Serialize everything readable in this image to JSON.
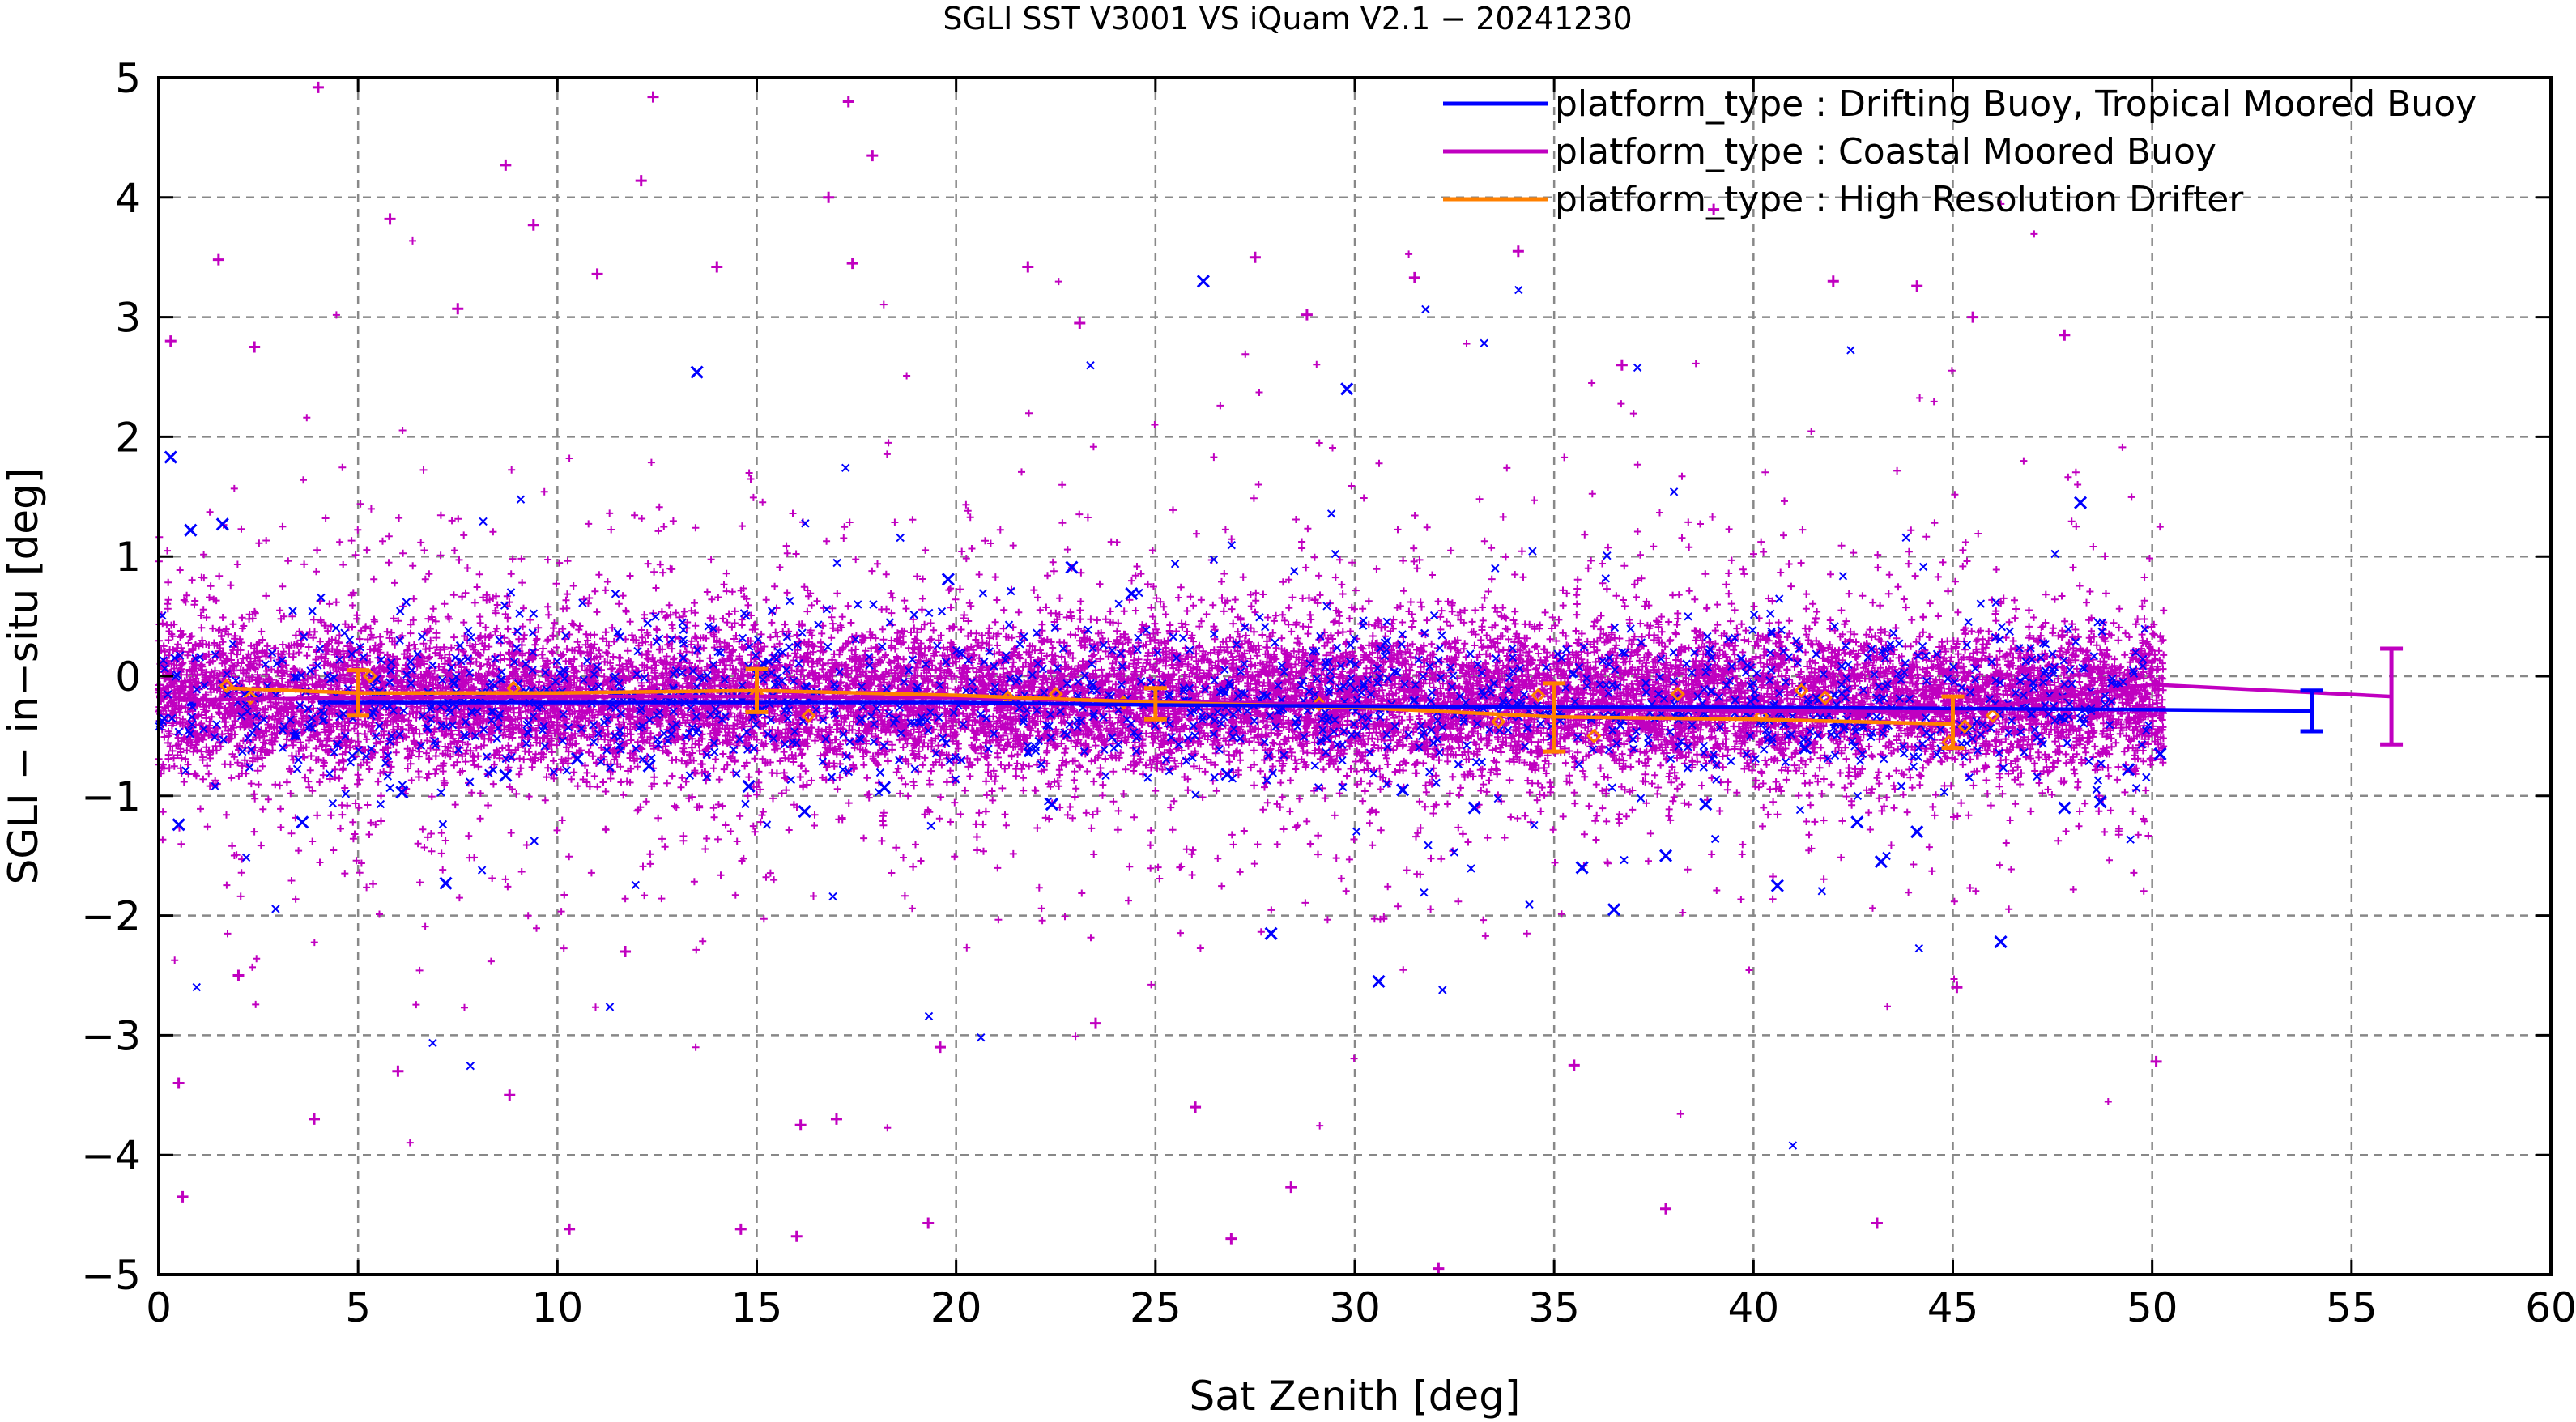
{
  "chart_data": {
    "type": "scatter",
    "title": "SGLI SST V3001 VS iQuam V2.1  − 20241230",
    "xlabel": "Sat Zenith [deg]",
    "ylabel": "SGLI − in−situ [deg]",
    "xlim": [
      0,
      60
    ],
    "ylim": [
      -5,
      5
    ],
    "xticks": [
      0,
      5,
      10,
      15,
      20,
      25,
      30,
      35,
      40,
      45,
      50,
      55,
      60
    ],
    "yticks": [
      -5,
      -4,
      -3,
      -2,
      -1,
      0,
      1,
      2,
      3,
      4,
      5
    ],
    "xtick_labels": [
      "0",
      "5",
      "10",
      "15",
      "20",
      "25",
      "30",
      "35",
      "40",
      "45",
      "50",
      "55",
      "60"
    ],
    "ytick_labels": [
      "−5",
      "−4",
      "−3",
      "−2",
      "−1",
      "0",
      "1",
      "2",
      "3",
      "4",
      "5"
    ],
    "grid": true,
    "legend_position": "top-right",
    "series": [
      {
        "name": "platform_type : Drifting Buoy, Tropical Moored Buoy",
        "color": "#0000ff",
        "marker": "x",
        "mean_line": {
          "x": [
            4,
            10,
            15,
            20,
            25,
            30,
            35,
            40,
            45,
            50,
            54
          ],
          "y": [
            -0.22,
            -0.22,
            -0.22,
            -0.22,
            -0.24,
            -0.25,
            -0.26,
            -0.26,
            -0.27,
            -0.28,
            -0.29
          ]
        },
        "error_bars": [
          {
            "x": 54,
            "low": -0.46,
            "high": -0.12
          }
        ],
        "sample_points": [
          {
            "x": 0.3,
            "y": 1.83
          },
          {
            "x": 0.5,
            "y": -1.24
          },
          {
            "x": 0.8,
            "y": 1.22
          },
          {
            "x": 1.6,
            "y": 1.27
          },
          {
            "x": 3.6,
            "y": -1.22
          },
          {
            "x": 6.1,
            "y": -0.97
          },
          {
            "x": 7.2,
            "y": -1.73
          },
          {
            "x": 8.7,
            "y": -0.83
          },
          {
            "x": 10.5,
            "y": -0.69
          },
          {
            "x": 13.5,
            "y": 2.54
          },
          {
            "x": 16.2,
            "y": -1.13
          },
          {
            "x": 18.2,
            "y": -0.93
          },
          {
            "x": 19.8,
            "y": 0.81
          },
          {
            "x": 22.4,
            "y": -1.07
          },
          {
            "x": 24.4,
            "y": 0.69
          },
          {
            "x": 26.2,
            "y": 3.3
          },
          {
            "x": 27.9,
            "y": -2.15
          },
          {
            "x": 29.8,
            "y": 2.4
          },
          {
            "x": 30.6,
            "y": -2.55
          },
          {
            "x": 31.2,
            "y": -0.95
          },
          {
            "x": 33.0,
            "y": -1.1
          },
          {
            "x": 35.7,
            "y": -1.6
          },
          {
            "x": 36.5,
            "y": -1.95
          },
          {
            "x": 37.8,
            "y": -1.5
          },
          {
            "x": 40.6,
            "y": -1.75
          },
          {
            "x": 41.3,
            "y": -0.6
          },
          {
            "x": 43.2,
            "y": -1.55
          },
          {
            "x": 44.1,
            "y": -1.3
          },
          {
            "x": 46.2,
            "y": -2.22
          },
          {
            "x": 47.8,
            "y": -1.1
          },
          {
            "x": 48.2,
            "y": 1.45
          },
          {
            "x": 49.4,
            "y": -0.78
          },
          {
            "x": 50.2,
            "y": -0.65
          },
          {
            "x": 48.7,
            "y": -1.05
          },
          {
            "x": 12.3,
            "y": -0.75
          },
          {
            "x": 22.9,
            "y": 0.91
          },
          {
            "x": 38.8,
            "y": -1.07
          },
          {
            "x": 42.6,
            "y": -1.22
          },
          {
            "x": 14.8,
            "y": -0.92
          },
          {
            "x": 26.8,
            "y": -0.82
          }
        ]
      },
      {
        "name": "platform_type : Coastal Moored Buoy",
        "color": "#c000c0",
        "marker": "+",
        "mean_line": {
          "x": [
            0.5,
            5,
            10,
            15,
            20,
            25,
            30,
            35,
            40,
            45,
            50,
            56
          ],
          "y": [
            -0.2,
            -0.18,
            -0.17,
            -0.17,
            -0.18,
            -0.21,
            -0.24,
            -0.27,
            -0.29,
            -0.3,
            -0.07,
            -0.17
          ]
        },
        "error_bars": [
          {
            "x": 56,
            "low": -0.57,
            "high": 0.23
          }
        ],
        "sample_points": [
          {
            "x": 4.0,
            "y": 4.92
          },
          {
            "x": 12.4,
            "y": 4.84
          },
          {
            "x": 17.3,
            "y": 4.8
          },
          {
            "x": 8.7,
            "y": 4.27
          },
          {
            "x": 12.1,
            "y": 4.14
          },
          {
            "x": 17.9,
            "y": 4.35
          },
          {
            "x": 16.8,
            "y": 4.0
          },
          {
            "x": 9.4,
            "y": 3.77
          },
          {
            "x": 1.5,
            "y": 3.48
          },
          {
            "x": 5.8,
            "y": 3.82
          },
          {
            "x": 11.0,
            "y": 3.36
          },
          {
            "x": 14.0,
            "y": 3.42
          },
          {
            "x": 17.4,
            "y": 3.45
          },
          {
            "x": 21.8,
            "y": 3.42
          },
          {
            "x": 27.5,
            "y": 3.5
          },
          {
            "x": 31.5,
            "y": 3.33
          },
          {
            "x": 34.1,
            "y": 3.55
          },
          {
            "x": 39.0,
            "y": 3.9
          },
          {
            "x": 42.0,
            "y": 3.3
          },
          {
            "x": 44.1,
            "y": 3.26
          },
          {
            "x": 45.5,
            "y": 3.0
          },
          {
            "x": 2.4,
            "y": 2.75
          },
          {
            "x": 7.5,
            "y": 3.07
          },
          {
            "x": 23.1,
            "y": 2.95
          },
          {
            "x": 28.8,
            "y": 3.02
          },
          {
            "x": 36.7,
            "y": 2.6
          },
          {
            "x": 47.8,
            "y": 2.85
          },
          {
            "x": 0.3,
            "y": 2.8
          },
          {
            "x": 0.5,
            "y": -3.4
          },
          {
            "x": 0.6,
            "y": -4.35
          },
          {
            "x": 3.9,
            "y": -3.7
          },
          {
            "x": 6.0,
            "y": -3.3
          },
          {
            "x": 8.8,
            "y": -3.5
          },
          {
            "x": 10.3,
            "y": -4.62
          },
          {
            "x": 14.6,
            "y": -4.62
          },
          {
            "x": 16.0,
            "y": -4.68
          },
          {
            "x": 16.1,
            "y": -3.75
          },
          {
            "x": 17.0,
            "y": -3.7
          },
          {
            "x": 19.3,
            "y": -4.57
          },
          {
            "x": 26.0,
            "y": -3.6
          },
          {
            "x": 26.9,
            "y": -4.7
          },
          {
            "x": 28.4,
            "y": -4.27
          },
          {
            "x": 32.1,
            "y": -4.95
          },
          {
            "x": 35.5,
            "y": -3.25
          },
          {
            "x": 37.8,
            "y": -4.45
          },
          {
            "x": 43.1,
            "y": -4.57
          },
          {
            "x": 50.1,
            "y": -3.22
          },
          {
            "x": 45.1,
            "y": -2.6
          },
          {
            "x": 19.6,
            "y": -3.1
          },
          {
            "x": 23.5,
            "y": -2.9
          },
          {
            "x": 2.0,
            "y": -2.5
          },
          {
            "x": 11.7,
            "y": -2.3
          }
        ]
      },
      {
        "name": "platform_type : High Resolution Drifter",
        "color": "#ff8000",
        "marker": "diamond",
        "mean_line": {
          "x": [
            1.7,
            5,
            10,
            15,
            20,
            25,
            30,
            35,
            40,
            45
          ],
          "y": [
            -0.1,
            -0.14,
            -0.14,
            -0.12,
            -0.16,
            -0.22,
            -0.26,
            -0.34,
            -0.36,
            -0.4
          ]
        },
        "error_bars": [
          {
            "x": 5,
            "low": -0.33,
            "high": 0.05
          },
          {
            "x": 15,
            "low": -0.3,
            "high": 0.06
          },
          {
            "x": 25,
            "low": -0.36,
            "high": -0.1
          },
          {
            "x": 35,
            "low": -0.63,
            "high": -0.06
          },
          {
            "x": 45,
            "low": -0.6,
            "high": -0.17
          }
        ],
        "sample_points": [
          {
            "x": 1.7,
            "y": -0.08
          },
          {
            "x": 2.3,
            "y": -0.18
          },
          {
            "x": 5.3,
            "y": 0.0
          },
          {
            "x": 8.9,
            "y": -0.1
          },
          {
            "x": 15.0,
            "y": -0.15
          },
          {
            "x": 16.3,
            "y": -0.33
          },
          {
            "x": 21.3,
            "y": -0.18
          },
          {
            "x": 22.5,
            "y": -0.15
          },
          {
            "x": 24.2,
            "y": -0.22
          },
          {
            "x": 33.6,
            "y": -0.38
          },
          {
            "x": 34.6,
            "y": -0.16
          },
          {
            "x": 36.0,
            "y": -0.5
          },
          {
            "x": 38.1,
            "y": -0.15
          },
          {
            "x": 40.2,
            "y": -0.33
          },
          {
            "x": 41.8,
            "y": -0.18
          },
          {
            "x": 44.9,
            "y": -0.55
          },
          {
            "x": 45.3,
            "y": -0.42
          },
          {
            "x": 46.0,
            "y": -0.33
          },
          {
            "x": 41.2,
            "y": -0.12
          },
          {
            "x": 29.1,
            "y": -0.23
          }
        ]
      }
    ]
  }
}
